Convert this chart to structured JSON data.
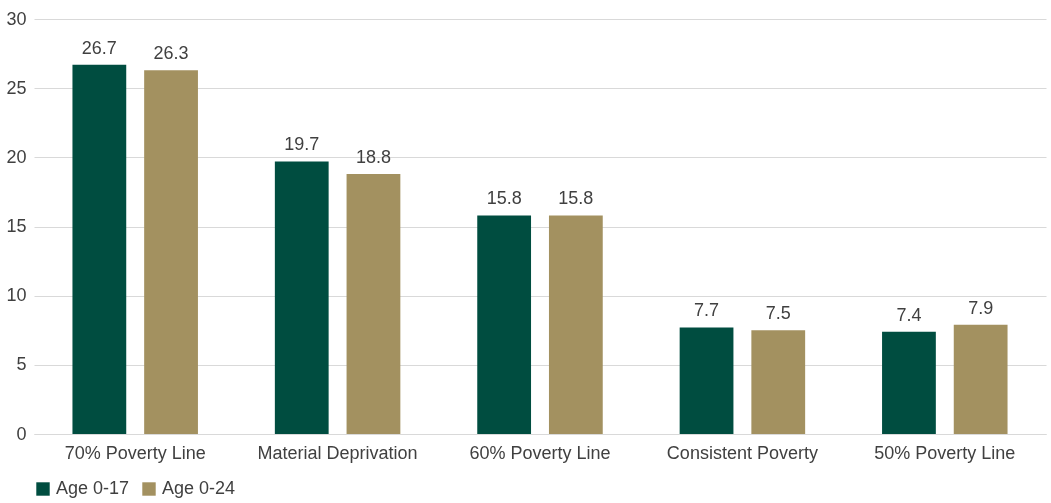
{
  "chart_data": {
    "type": "bar",
    "categories": [
      "70% Poverty Line",
      "Material Deprivation",
      "60% Poverty Line",
      "Consistent Poverty",
      "50% Poverty Line"
    ],
    "series": [
      {
        "name": "Age 0-17",
        "color": "#004d40",
        "values": [
          26.7,
          19.7,
          15.8,
          7.7,
          7.4
        ]
      },
      {
        "name": "Age 0-24",
        "color": "#a39160",
        "values": [
          26.3,
          18.8,
          15.8,
          7.5,
          7.9
        ]
      }
    ],
    "ylim": [
      0,
      30
    ],
    "yticks": [
      0,
      5,
      10,
      15,
      20,
      25,
      30
    ],
    "grid": "y",
    "legend": "bottom",
    "data_labels": true
  }
}
